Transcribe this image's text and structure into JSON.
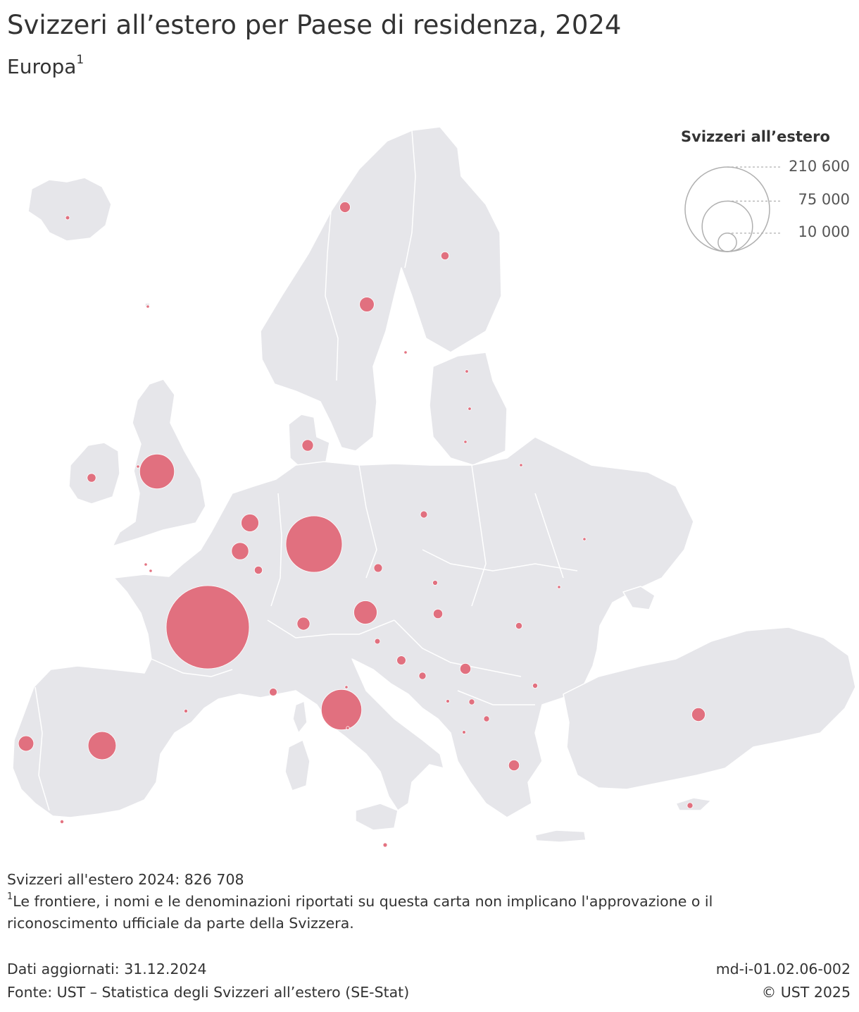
{
  "header": {
    "title": "Svizzeri all’estero per Paese di residenza, 2024",
    "subtitle": "Europa",
    "subtitle_footnote_mark": "1"
  },
  "legend": {
    "title": "Svizzeri all’estero",
    "values": [
      "210 600",
      "75 000",
      "10 000"
    ],
    "reference_values": [
      210600,
      75000,
      10000
    ]
  },
  "colors": {
    "land": "#e6e6ea",
    "border": "#ffffff",
    "bubble": "#e06070",
    "legend_circle": "#b0b0b0",
    "text": "#333333"
  },
  "map_data": {
    "type": "proportional-symbol",
    "region": "Europe",
    "year": 2024,
    "countries": [
      {
        "country": "Francia",
        "value": 210600
      },
      {
        "country": "Germania",
        "value": 97000
      },
      {
        "country": "Italia",
        "value": 50000
      },
      {
        "country": "Regno Unito",
        "value": 37000
      },
      {
        "country": "Spagna",
        "value": 24000
      },
      {
        "country": "Austria",
        "value": 16500
      },
      {
        "country": "Paesi Bassi",
        "value": 9500
      },
      {
        "country": "Belgio",
        "value": 9000
      },
      {
        "country": "Portogallo",
        "value": 7200
      },
      {
        "country": "Liechtenstein",
        "value": 5000
      },
      {
        "country": "Turchia",
        "value": 5600
      },
      {
        "country": "Svezia",
        "value": 6600
      },
      {
        "country": "Danimarca",
        "value": 4000
      },
      {
        "country": "Norvegia",
        "value": 3400
      },
      {
        "country": "Grecia",
        "value": 3600
      },
      {
        "country": "Serbia",
        "value": 3600
      },
      {
        "country": "Irlanda",
        "value": 2300
      },
      {
        "country": "Ungheria",
        "value": 2700
      },
      {
        "country": "Croazia",
        "value": 2500
      },
      {
        "country": "Repubblica Ceca",
        "value": 2200
      },
      {
        "country": "Lussemburgo",
        "value": 2000
      },
      {
        "country": "Finlandia",
        "value": 2000
      },
      {
        "country": "Monaco",
        "value": 1800
      },
      {
        "country": "Polonia",
        "value": 1500
      },
      {
        "country": "Bosnia ed Erzegovina",
        "value": 1600
      },
      {
        "country": "Romania",
        "value": 1300
      },
      {
        "country": "Macedonia del Nord",
        "value": 1000
      },
      {
        "country": "Cipro",
        "value": 1000
      },
      {
        "country": "Montenegro",
        "value": 1000
      },
      {
        "country": "Slovenia",
        "value": 900
      },
      {
        "country": "Bulgaria",
        "value": 800
      },
      {
        "country": "Slovacchia",
        "value": 750
      },
      {
        "country": "Islanda",
        "value": 500
      },
      {
        "country": "Malta",
        "value": 550
      },
      {
        "country": "Gibilterra",
        "value": 400
      },
      {
        "country": "Estonia",
        "value": 330
      },
      {
        "country": "Lettonia",
        "value": 330
      },
      {
        "country": "Lituania",
        "value": 280
      },
      {
        "country": "Ucraina",
        "value": 300
      },
      {
        "country": "Bielorussia",
        "value": 250
      },
      {
        "country": "Andorra",
        "value": 400
      },
      {
        "country": "Albania",
        "value": 350
      },
      {
        "country": "Kosovo",
        "value": 350
      },
      {
        "country": "San Marino",
        "value": 300
      },
      {
        "country": "Città del Vaticano",
        "value": 250
      },
      {
        "country": "Moldavia",
        "value": 150
      },
      {
        "country": "Jersey",
        "value": 300
      },
      {
        "country": "Guernsey",
        "value": 250
      },
      {
        "country": "Isola di Man",
        "value": 200
      },
      {
        "country": "Isole Fær Øer",
        "value": 100
      },
      {
        "country": "Isole Åland",
        "value": 100
      }
    ]
  },
  "footer": {
    "total": "Svizzeri all'estero 2024: 826 708",
    "note_mark": "1",
    "note_line1": "Le frontiere, i nomi e le denominazioni riportati su questa carta non implicano l'approvazione o il",
    "note_line2": "riconoscimento ufficiale da parte della Svizzera.",
    "updated": "Dati aggiornati: 31.12.2024",
    "source": "Fonte: UST – Statistica degli Svizzeri all’estero (SE-Stat)",
    "code": "md-i-01.02.06-002",
    "copyright": "© UST 2025"
  }
}
